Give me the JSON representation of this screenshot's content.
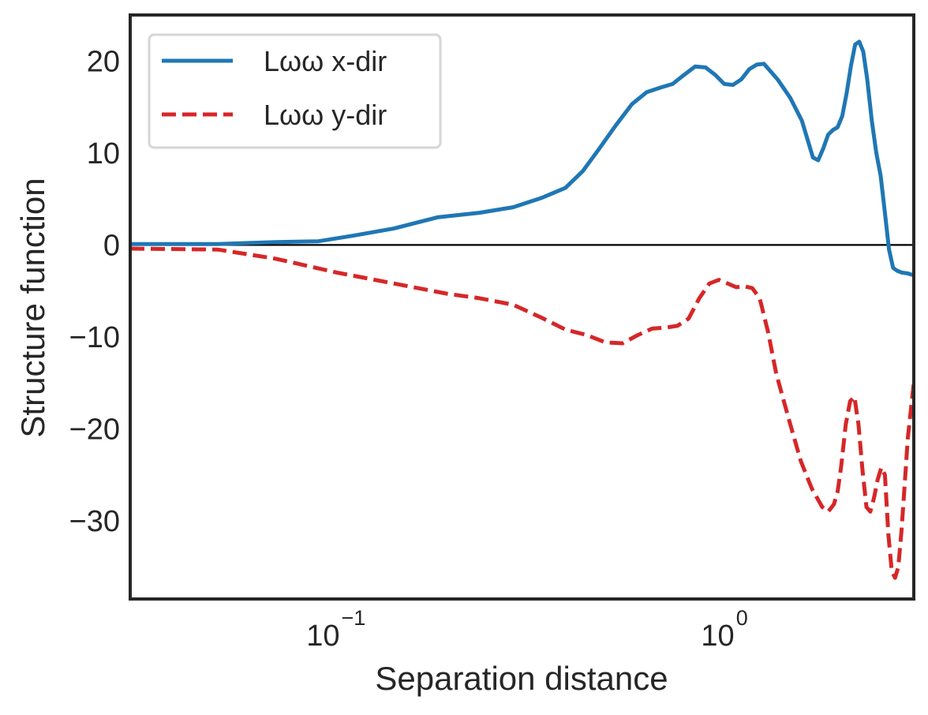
{
  "chart_data": {
    "type": "line",
    "title": "",
    "xlabel": "Separation distance",
    "ylabel": "Structure function",
    "xscale": "log",
    "xlim": [
      0.03,
      2.9
    ],
    "ylim": [
      -38.5,
      25
    ],
    "grid": false,
    "legend_placement": "top-left",
    "zero_line": true,
    "x_ticks": [
      {
        "value": 0.1,
        "base": "10",
        "exp": "−1"
      },
      {
        "value": 1,
        "base": "10",
        "exp": "0"
      }
    ],
    "y_ticks": [
      {
        "value": 20,
        "label": "20"
      },
      {
        "value": 10,
        "label": "10"
      },
      {
        "value": 0,
        "label": "0"
      },
      {
        "value": -10,
        "label": "−10"
      },
      {
        "value": -20,
        "label": "−20"
      },
      {
        "value": -30,
        "label": "−30"
      }
    ],
    "series": [
      {
        "name": "Lωω x-dir",
        "color": "#1f77b4",
        "style": "solid",
        "x": [
          0.03,
          0.05,
          0.07,
          0.09,
          0.11,
          0.14,
          0.18,
          0.23,
          0.28,
          0.33,
          0.38,
          0.42,
          0.46,
          0.51,
          0.56,
          0.61,
          0.66,
          0.71,
          0.76,
          0.81,
          0.86,
          0.91,
          0.96,
          1.01,
          1.06,
          1.11,
          1.16,
          1.21,
          1.31,
          1.41,
          1.51,
          1.61,
          1.66,
          1.71,
          1.76,
          1.81,
          1.86,
          1.91,
          1.96,
          2.01,
          2.06,
          2.11,
          2.16,
          2.21,
          2.27,
          2.33,
          2.39,
          2.45,
          2.51,
          2.57,
          2.63,
          2.7,
          2.8,
          2.9
        ],
        "y": [
          0.1,
          0.1,
          0.3,
          0.4,
          1.0,
          1.8,
          3.0,
          3.5,
          4.1,
          5.1,
          6.2,
          8.0,
          10.3,
          13.0,
          15.3,
          16.6,
          17.1,
          17.5,
          18.5,
          19.4,
          19.3,
          18.5,
          17.5,
          17.4,
          18.0,
          19.1,
          19.6,
          19.7,
          18.0,
          16.0,
          13.5,
          9.5,
          9.2,
          10.5,
          12.0,
          12.5,
          12.8,
          14.0,
          16.5,
          19.5,
          21.8,
          22.1,
          21.0,
          18.0,
          13.5,
          10.0,
          7.5,
          3.5,
          -0.5,
          -2.5,
          -2.8,
          -3.0,
          -3.1,
          -3.3
        ]
      },
      {
        "name": "Lωω y-dir",
        "color": "#d62728",
        "style": "dashed",
        "x": [
          0.03,
          0.05,
          0.07,
          0.1,
          0.14,
          0.19,
          0.23,
          0.28,
          0.33,
          0.38,
          0.43,
          0.48,
          0.53,
          0.58,
          0.63,
          0.68,
          0.73,
          0.78,
          0.83,
          0.88,
          0.93,
          0.98,
          1.03,
          1.08,
          1.13,
          1.18,
          1.24,
          1.3,
          1.4,
          1.5,
          1.6,
          1.7,
          1.76,
          1.82,
          1.86,
          1.9,
          1.95,
          2.0,
          2.05,
          2.1,
          2.15,
          2.2,
          2.25,
          2.3,
          2.35,
          2.4,
          2.45,
          2.5,
          2.55,
          2.6,
          2.65,
          2.7,
          2.75,
          2.8,
          2.9
        ],
        "y": [
          -0.4,
          -0.5,
          -1.5,
          -3.0,
          -4.2,
          -5.3,
          -5.8,
          -6.5,
          -7.9,
          -9.2,
          -9.8,
          -10.6,
          -10.7,
          -9.8,
          -9.1,
          -9.0,
          -8.8,
          -8.0,
          -5.8,
          -4.2,
          -3.8,
          -4.2,
          -4.6,
          -4.5,
          -4.7,
          -5.8,
          -9.5,
          -14.0,
          -19.0,
          -23.5,
          -26.5,
          -28.5,
          -29.0,
          -28.2,
          -26.8,
          -24.0,
          -19.5,
          -17.0,
          -16.5,
          -19.5,
          -24.5,
          -28.5,
          -29.0,
          -27.5,
          -25.5,
          -24.2,
          -25.0,
          -31.5,
          -35.5,
          -36.2,
          -35.0,
          -31.0,
          -26.0,
          -21.0,
          -15.0
        ]
      }
    ]
  }
}
